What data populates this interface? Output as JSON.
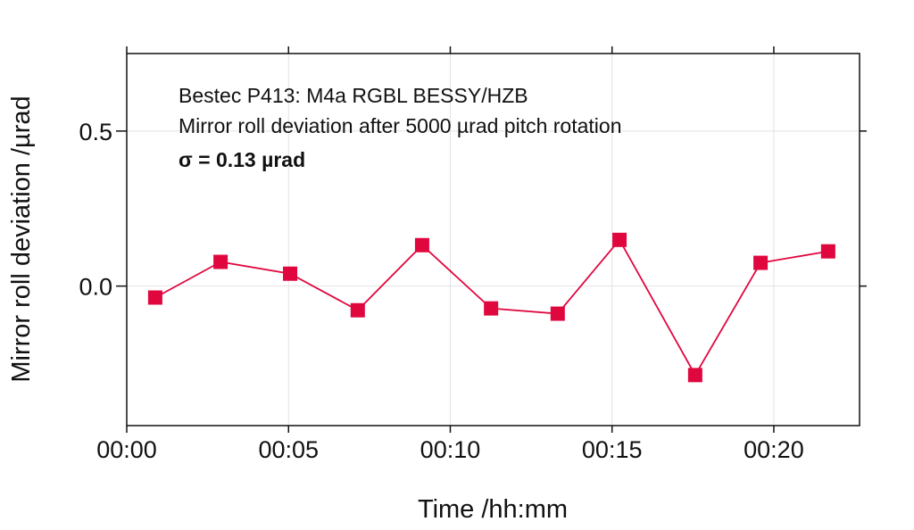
{
  "chart_data": {
    "type": "line",
    "title": "",
    "annotations": [
      "Bestec P413: M4a RGBL BESSY/HZB",
      "Mirror roll deviation after 5000 µrad pitch rotation",
      "σ = 0.13 µrad"
    ],
    "xlabel": "Time /hh:mm",
    "ylabel": "Mirror roll deviation /µrad",
    "x_unit": "minutes",
    "xlim": [
      0,
      22.65
    ],
    "ylim": [
      -0.45,
      0.75
    ],
    "xticks": [
      0,
      5,
      10,
      15,
      20
    ],
    "xtick_labels": [
      "00:00",
      "00:05",
      "00:10",
      "00:15",
      "00:20"
    ],
    "yticks": [
      0.0,
      0.5
    ],
    "ytick_labels": [
      "0.0",
      "0.5"
    ],
    "grid": true,
    "series": [
      {
        "name": "roll deviation",
        "color": "#e0073f",
        "marker": "square",
        "x": [
          0.88,
          2.9,
          5.05,
          7.14,
          9.13,
          11.26,
          13.32,
          15.23,
          17.57,
          19.59,
          21.68
        ],
        "y": [
          -0.037,
          0.078,
          0.04,
          -0.078,
          0.132,
          -0.072,
          -0.089,
          0.149,
          -0.287,
          0.075,
          0.112
        ]
      }
    ]
  }
}
